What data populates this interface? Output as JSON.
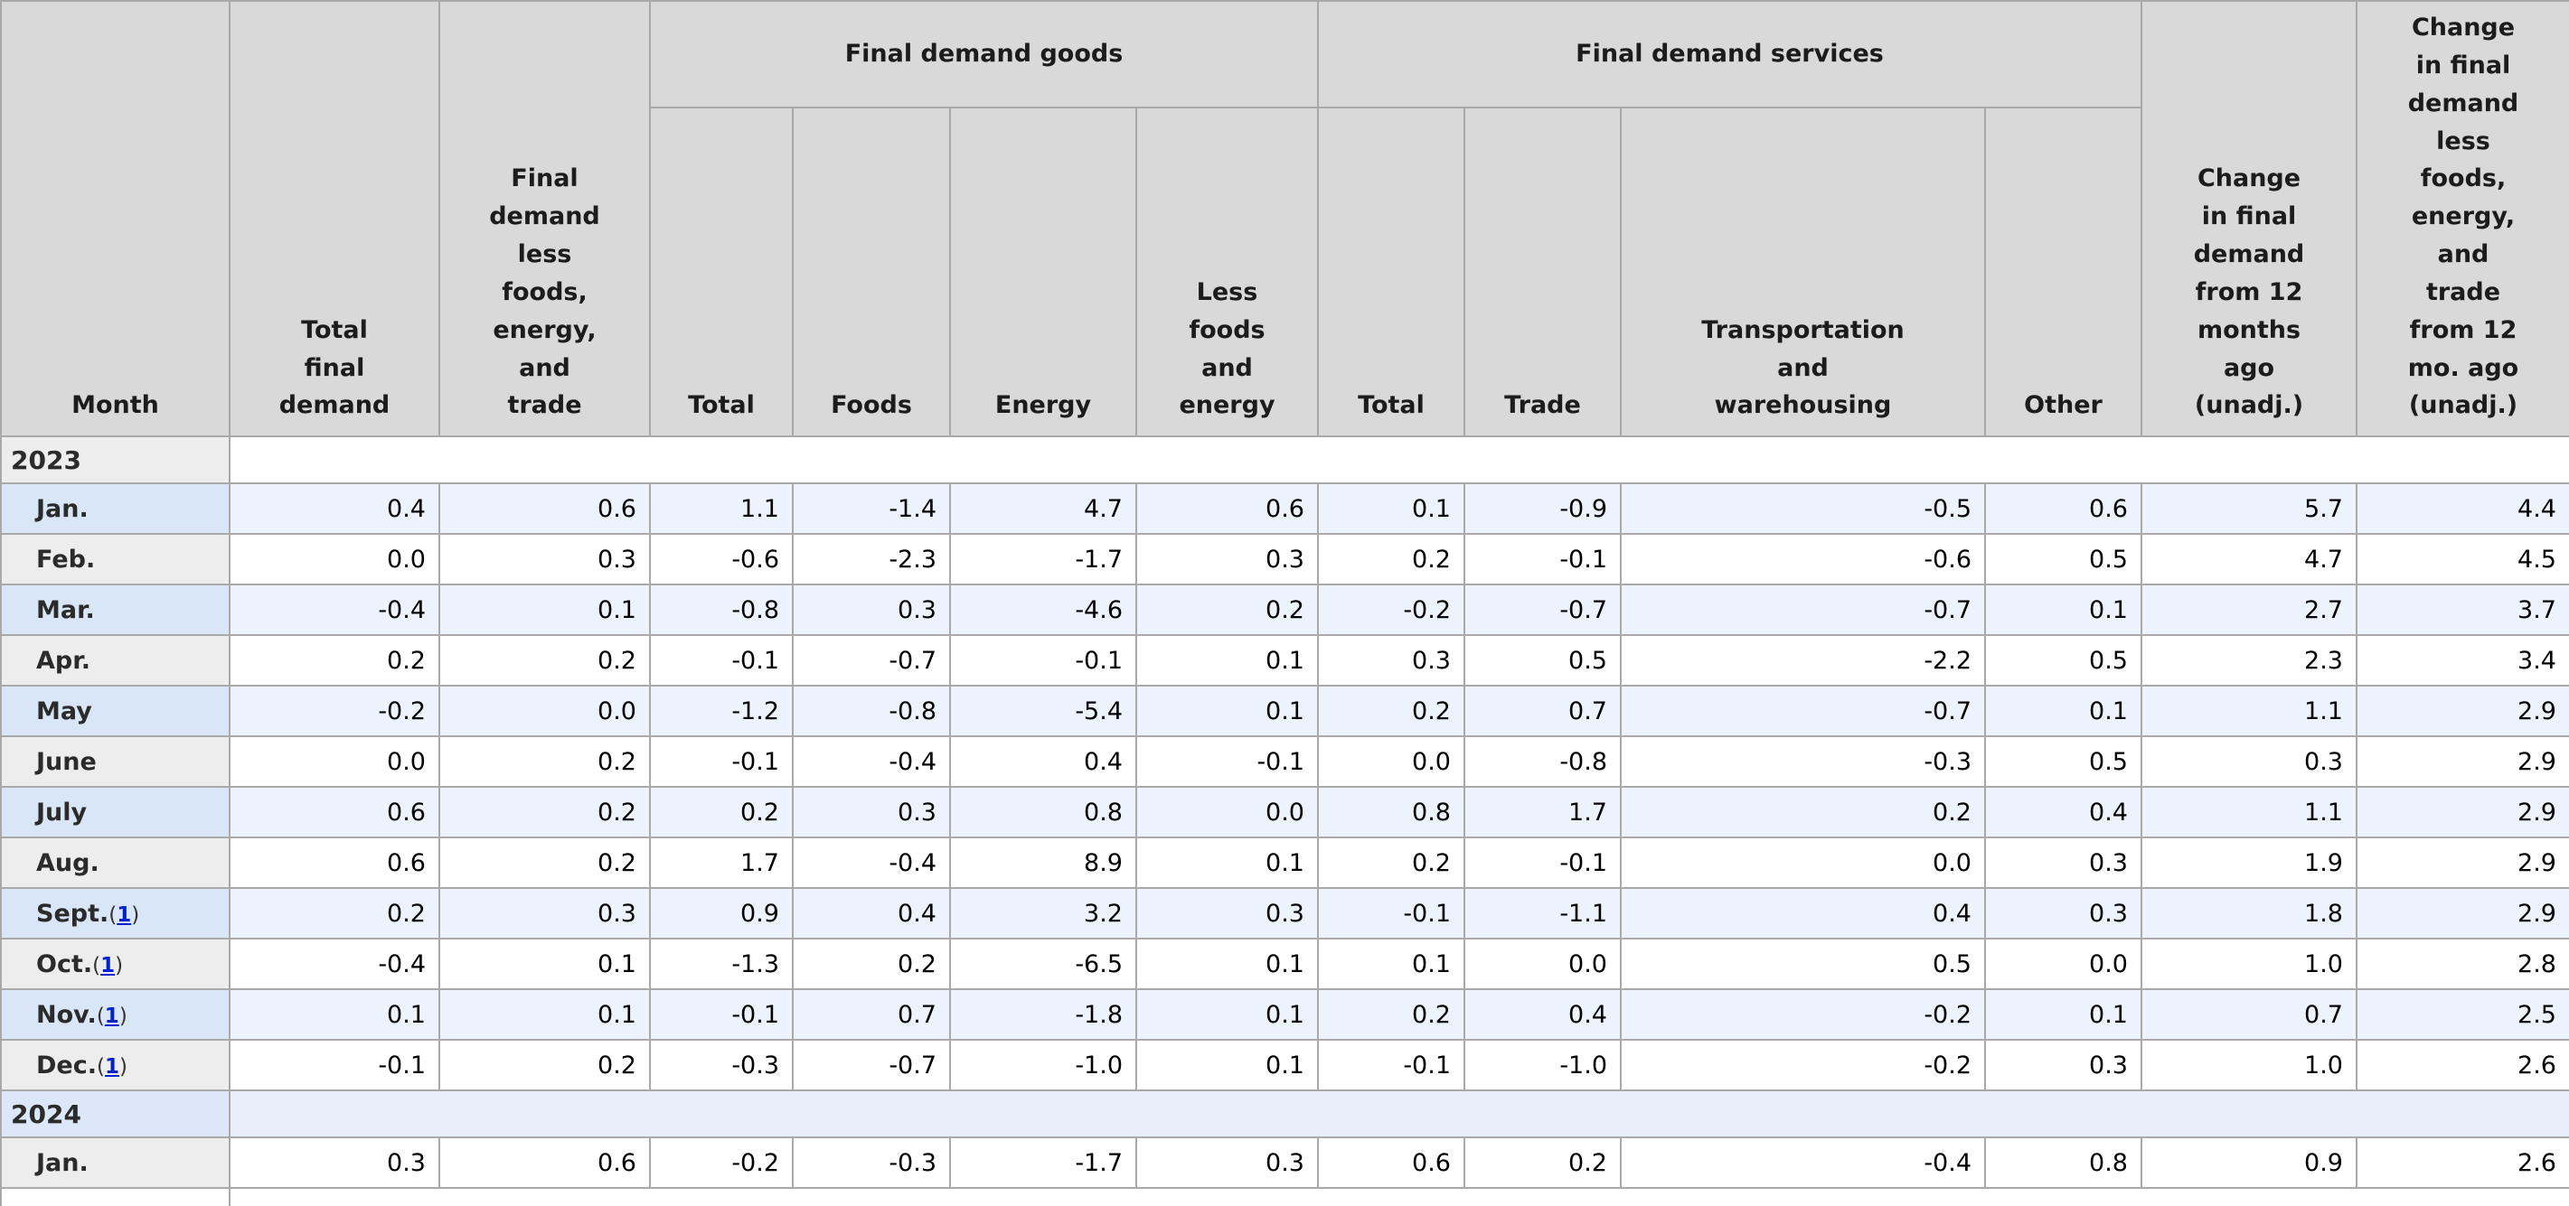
{
  "header": {
    "month": "Month",
    "total_final_demand": "Total\nfinal\ndemand",
    "less_fet": "Final\ndemand\nless\nfoods,\nenergy,\nand\ntrade",
    "goods_group": "Final demand goods",
    "goods": [
      "Total",
      "Foods",
      "Energy",
      "Less\nfoods\nand\nenergy"
    ],
    "services_group": "Final demand services",
    "services": [
      "Total",
      "Trade",
      "Transportation\nand\nwarehousing",
      "Other"
    ],
    "change_12mo": "Change\nin final\ndemand\nfrom 12\nmonths\nago\n(unadj.)",
    "change_12mo_less": "Change\nin final\ndemand\nless\nfoods,\nenergy,\nand\ntrade\nfrom 12\nmo. ago\n(unadj.)"
  },
  "rows": [
    {
      "type": "year",
      "label": "2023",
      "shade": "gray"
    },
    {
      "type": "month",
      "label": "Jan.",
      "shade": "blue",
      "values": [
        "0.4",
        "0.6",
        "1.1",
        "-1.4",
        "4.7",
        "0.6",
        "0.1",
        "-0.9",
        "-0.5",
        "0.6",
        "5.7",
        "4.4"
      ]
    },
    {
      "type": "month",
      "label": "Feb.",
      "shade": "white",
      "values": [
        "0.0",
        "0.3",
        "-0.6",
        "-2.3",
        "-1.7",
        "0.3",
        "0.2",
        "-0.1",
        "-0.6",
        "0.5",
        "4.7",
        "4.5"
      ]
    },
    {
      "type": "month",
      "label": "Mar.",
      "shade": "blue",
      "values": [
        "-0.4",
        "0.1",
        "-0.8",
        "0.3",
        "-4.6",
        "0.2",
        "-0.2",
        "-0.7",
        "-0.7",
        "0.1",
        "2.7",
        "3.7"
      ]
    },
    {
      "type": "month",
      "label": "Apr.",
      "shade": "white",
      "values": [
        "0.2",
        "0.2",
        "-0.1",
        "-0.7",
        "-0.1",
        "0.1",
        "0.3",
        "0.5",
        "-2.2",
        "0.5",
        "2.3",
        "3.4"
      ]
    },
    {
      "type": "month",
      "label": "May",
      "shade": "blue",
      "values": [
        "-0.2",
        "0.0",
        "-1.2",
        "-0.8",
        "-5.4",
        "0.1",
        "0.2",
        "0.7",
        "-0.7",
        "0.1",
        "1.1",
        "2.9"
      ]
    },
    {
      "type": "month",
      "label": "June",
      "shade": "white",
      "values": [
        "0.0",
        "0.2",
        "-0.1",
        "-0.4",
        "0.4",
        "-0.1",
        "0.0",
        "-0.8",
        "-0.3",
        "0.5",
        "0.3",
        "2.9"
      ]
    },
    {
      "type": "month",
      "label": "July",
      "shade": "blue",
      "values": [
        "0.6",
        "0.2",
        "0.2",
        "0.3",
        "0.8",
        "0.0",
        "0.8",
        "1.7",
        "0.2",
        "0.4",
        "1.1",
        "2.9"
      ]
    },
    {
      "type": "month",
      "label": "Aug.",
      "shade": "white",
      "values": [
        "0.6",
        "0.2",
        "1.7",
        "-0.4",
        "8.9",
        "0.1",
        "0.2",
        "-0.1",
        "0.0",
        "0.3",
        "1.9",
        "2.9"
      ]
    },
    {
      "type": "month",
      "label": "Sept.",
      "footnote": "1",
      "shade": "blue",
      "values": [
        "0.2",
        "0.3",
        "0.9",
        "0.4",
        "3.2",
        "0.3",
        "-0.1",
        "-1.1",
        "0.4",
        "0.3",
        "1.8",
        "2.9"
      ]
    },
    {
      "type": "month",
      "label": "Oct.",
      "footnote": "1",
      "shade": "white",
      "values": [
        "-0.4",
        "0.1",
        "-1.3",
        "0.2",
        "-6.5",
        "0.1",
        "0.1",
        "0.0",
        "0.5",
        "0.0",
        "1.0",
        "2.8"
      ]
    },
    {
      "type": "month",
      "label": "Nov.",
      "footnote": "1",
      "shade": "blue",
      "values": [
        "0.1",
        "0.1",
        "-0.1",
        "0.7",
        "-1.8",
        "0.1",
        "0.2",
        "0.4",
        "-0.2",
        "0.1",
        "0.7",
        "2.5"
      ]
    },
    {
      "type": "month",
      "label": "Dec.",
      "footnote": "1",
      "shade": "white",
      "values": [
        "-0.1",
        "0.2",
        "-0.3",
        "-0.7",
        "-1.0",
        "0.1",
        "-0.1",
        "-1.0",
        "-0.2",
        "0.3",
        "1.0",
        "2.6"
      ]
    },
    {
      "type": "year",
      "label": "2024",
      "shade": "blue"
    },
    {
      "type": "month",
      "label": "Jan.",
      "shade": "white",
      "values": [
        "0.3",
        "0.6",
        "-0.2",
        "-0.3",
        "-1.7",
        "0.3",
        "0.6",
        "0.2",
        "-0.4",
        "0.8",
        "0.9",
        "2.6"
      ]
    }
  ],
  "colors": {
    "header_bg": "#d9d9d9",
    "row_blue_label": "#d9e6f8",
    "row_blue_cell": "#edf3fc",
    "row_gray_label": "#ededed",
    "row_white_cell": "#ffffff",
    "year_2024_label": "#dce8f9",
    "year_2024_span": "#e8effb",
    "border": "#a9a9a9",
    "footnote_link": "#0022cc"
  }
}
